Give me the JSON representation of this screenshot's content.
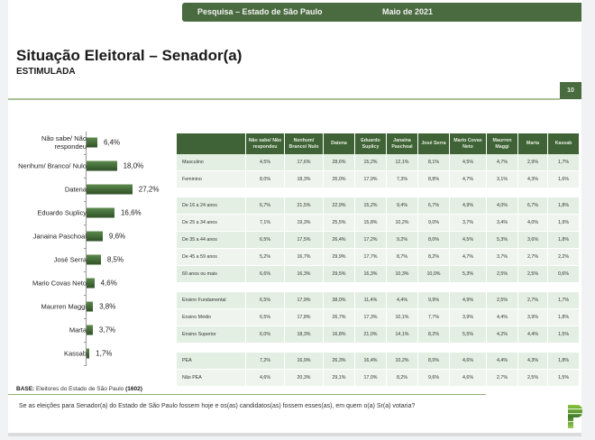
{
  "header": {
    "title": "Pesquisa – Estado de São Paulo",
    "date": "Maio de 2021"
  },
  "page": {
    "title": "Situação Eleitoral – Senador(a)",
    "subtitle": "ESTIMULADA",
    "page_number": "10"
  },
  "chart_data": {
    "type": "bar",
    "orientation": "horizontal",
    "categories": [
      "Não sabe/ Não respondeu",
      "Nenhum/ Branco/ Nulo",
      "Datena",
      "Eduardo Suplicy",
      "Janaina Paschoal",
      "José Serra",
      "Mario Covas Neto",
      "Maurren Maggi",
      "Marta",
      "Kassab"
    ],
    "values": [
      6.4,
      18.0,
      27.2,
      16.6,
      9.6,
      8.5,
      4.6,
      3.8,
      3.7,
      1.7
    ],
    "labels": [
      "6,4%",
      "18,0%",
      "27,2%",
      "16,6%",
      "9,6%",
      "8,5%",
      "4,6%",
      "3,8%",
      "3,7%",
      "1,7%"
    ],
    "xlim": [
      0,
      30
    ],
    "unit": "%",
    "color": "#3f6236"
  },
  "table": {
    "columns": [
      "Não sabe/ Não respondeu",
      "Nenhum/ Branco/ Nulo",
      "Datena",
      "Eduardo Suplicy",
      "Janaina Paschoal",
      "José Serra",
      "Mario Covas Neto",
      "Maurren Maggi",
      "Marta",
      "Kassab"
    ],
    "groups": [
      [
        {
          "label": "Masculino",
          "values": [
            "4,5%",
            "17,6%",
            "28,6%",
            "15,2%",
            "12,1%",
            "8,1%",
            "4,5%",
            "4,7%",
            "2,9%",
            "1,7%"
          ]
        },
        {
          "label": "Feminino",
          "values": [
            "8,0%",
            "18,3%",
            "26,0%",
            "17,9%",
            "7,3%",
            "8,8%",
            "4,7%",
            "3,1%",
            "4,3%",
            "1,6%"
          ]
        }
      ],
      [
        {
          "label": "De 16 a 24 anos",
          "values": [
            "6,7%",
            "21,5%",
            "22,9%",
            "15,2%",
            "9,4%",
            "6,7%",
            "4,9%",
            "4,0%",
            "6,7%",
            "1,8%"
          ]
        },
        {
          "label": "De 25 a 34 anos",
          "values": [
            "7,1%",
            "19,3%",
            "25,5%",
            "15,8%",
            "10,2%",
            "9,0%",
            "3,7%",
            "3,4%",
            "4,0%",
            "1,9%"
          ]
        },
        {
          "label": "De 35 a 44 anos",
          "values": [
            "6,5%",
            "17,5%",
            "26,4%",
            "17,2%",
            "9,2%",
            "8,0%",
            "4,5%",
            "5,3%",
            "3,6%",
            "1,8%"
          ]
        },
        {
          "label": "De 45 a 59 anos",
          "values": [
            "5,2%",
            "16,7%",
            "29,9%",
            "17,7%",
            "8,7%",
            "8,2%",
            "4,7%",
            "3,7%",
            "2,7%",
            "2,2%"
          ]
        },
        {
          "label": "60 anos ou mais",
          "values": [
            "6,6%",
            "16,3%",
            "29,5%",
            "16,3%",
            "10,3%",
            "10,0%",
            "5,3%",
            "2,5%",
            "2,5%",
            "0,6%"
          ]
        }
      ],
      [
        {
          "label": "Ensino Fundamental",
          "values": [
            "6,5%",
            "17,9%",
            "38,0%",
            "11,4%",
            "4,4%",
            "9,9%",
            "4,9%",
            "2,5%",
            "2,7%",
            "1,7%"
          ]
        },
        {
          "label": "Ensino Médio",
          "values": [
            "6,5%",
            "17,8%",
            "26,7%",
            "17,3%",
            "10,1%",
            "7,7%",
            "3,9%",
            "4,4%",
            "3,9%",
            "1,8%"
          ]
        },
        {
          "label": "Ensino Superior",
          "values": [
            "6,0%",
            "18,3%",
            "16,8%",
            "21,0%",
            "14,1%",
            "8,2%",
            "5,5%",
            "4,2%",
            "4,4%",
            "1,5%"
          ]
        }
      ],
      [
        {
          "label": "PEA",
          "values": [
            "7,2%",
            "16,9%",
            "26,3%",
            "16,4%",
            "10,2%",
            "8,0%",
            "4,6%",
            "4,4%",
            "4,3%",
            "1,8%"
          ]
        },
        {
          "label": "Não PEA",
          "values": [
            "4,6%",
            "20,3%",
            "29,1%",
            "17,0%",
            "8,2%",
            "9,6%",
            "4,6%",
            "2,7%",
            "2,5%",
            "1,5%"
          ]
        }
      ]
    ]
  },
  "footer": {
    "base_label": "BASE:",
    "base_text": "Eleitores do Estado de São Paulo",
    "base_count": "(1602)",
    "question": "Se as eleições para Senador(a) do Estado de São Paulo fossem hoje e os(as) candidatos(as) fossem esses(as), em quem o(a) Sr(a) votaria?"
  },
  "logo": {
    "icon": "paraná-pesquisas-p-logo-icon"
  }
}
